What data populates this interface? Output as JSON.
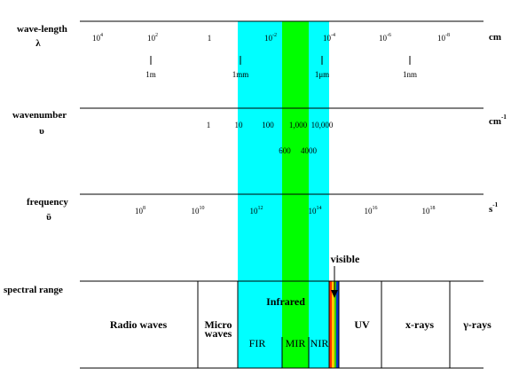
{
  "colors": {
    "infrared_band": "#00ffff",
    "mir_band": "#00ff00",
    "visible_red": "#ff3300",
    "visible_yellow": "#ffcc00",
    "visible_green": "#33cc00",
    "visible_blue": "#0033cc",
    "line": "#000000"
  },
  "wavelength": {
    "label": "wave-length",
    "symbol": "λ",
    "unit": "cm",
    "ticks": [
      {
        "base": "10",
        "exp": "4"
      },
      {
        "base": "10",
        "exp": "2"
      },
      {
        "base": "1",
        "exp": ""
      },
      {
        "base": "10",
        "exp": "-2"
      },
      {
        "base": "10",
        "exp": "-4"
      },
      {
        "base": "10",
        "exp": "-6"
      },
      {
        "base": "10",
        "exp": "-8"
      }
    ],
    "markers": [
      "1m",
      "1mm",
      "1μm",
      "1nm"
    ]
  },
  "wavenumber": {
    "label": "wavenumber",
    "symbol": "υ",
    "unit": "cm",
    "unit_exp": "-1",
    "ticks": [
      "1",
      "10",
      "100",
      "1,000",
      "10,000"
    ],
    "extra_ticks": [
      "600",
      "4000"
    ]
  },
  "frequency": {
    "label": "frequency",
    "symbol": "ῡ",
    "unit": "s",
    "unit_exp": "-1",
    "ticks": [
      {
        "base": "10",
        "exp": "8"
      },
      {
        "base": "10",
        "exp": "10"
      },
      {
        "base": "10",
        "exp": "12"
      },
      {
        "base": "10",
        "exp": "14"
      },
      {
        "base": "10",
        "exp": "16"
      },
      {
        "base": "10",
        "exp": "18"
      }
    ]
  },
  "spectral_range": {
    "label": "spectral range",
    "visible_label": "visible",
    "infrared_label": "Infrared",
    "regions": {
      "radio": "Radio waves",
      "micro_top": "Micro",
      "micro_bottom": "waves",
      "fir": "FIR",
      "mir": "MIR",
      "nir": "NIR",
      "uv": "UV",
      "xray": "x-rays",
      "gamma": "γ-rays"
    }
  }
}
